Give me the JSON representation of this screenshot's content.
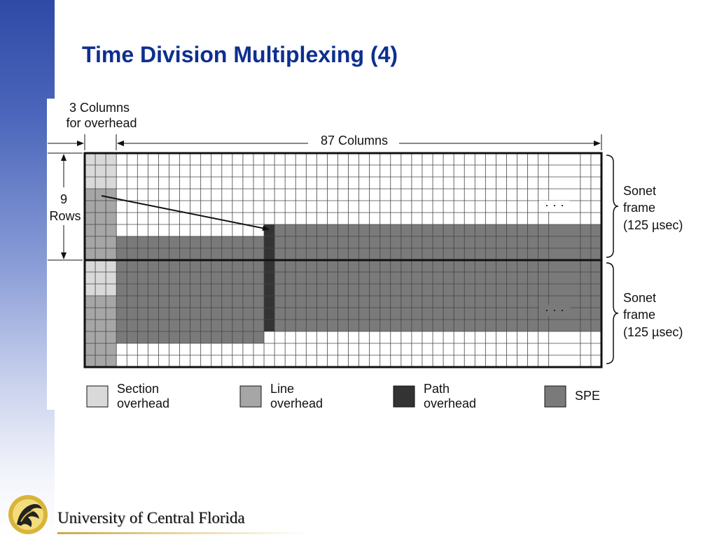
{
  "slide": {
    "title": "Time Division Multiplexing (4)"
  },
  "diagram": {
    "overhead_label_line1": "3 Columns",
    "overhead_label_line2": "for overhead",
    "columns_label": "87 Columns",
    "rows_label_line1": "9",
    "rows_label_line2": "Rows",
    "ellipsis": "· · ·",
    "frames": [
      {
        "line1": "Sonet",
        "line2": "frame",
        "line3": "(125 µsec)"
      },
      {
        "line1": "Sonet",
        "line2": "frame",
        "line3": "(125 µsec)"
      }
    ],
    "legend": [
      {
        "line1": "Section",
        "line2": "overhead",
        "color": "#d9d9d9"
      },
      {
        "line1": "Line",
        "line2": "overhead",
        "color": "#a6a6a6"
      },
      {
        "line1": "Path",
        "line2": "overhead",
        "color": "#333333"
      },
      {
        "line1": "SPE",
        "line2": "",
        "color": "#7a7a7a"
      }
    ],
    "colors": {
      "section_overhead": "#d9d9d9",
      "line_overhead": "#a6a6a6",
      "path_overhead": "#333333",
      "spe": "#7a7a7a",
      "grid_line": "#444444"
    }
  },
  "footer": {
    "university_name": "University of Central Florida",
    "logo": "pegasus-logo"
  }
}
